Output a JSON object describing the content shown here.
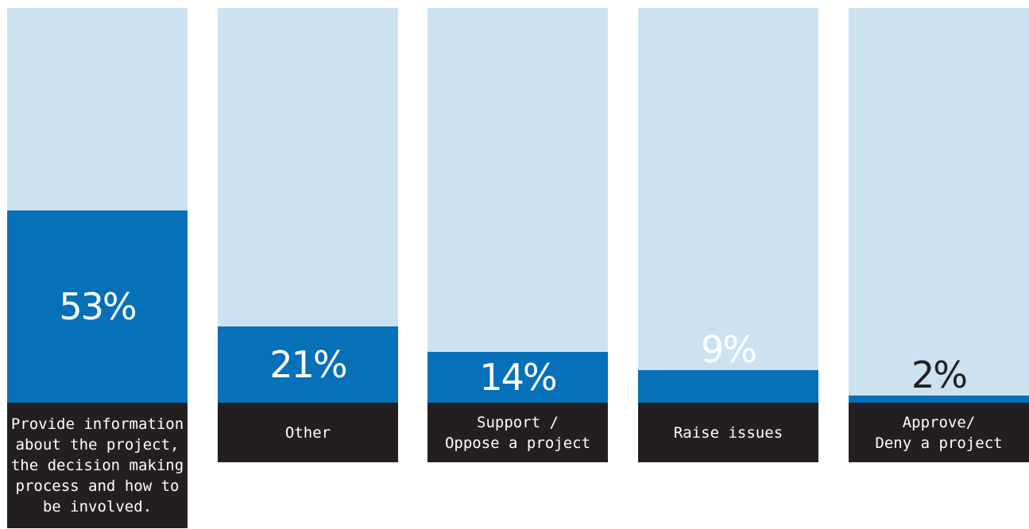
{
  "chart_data": {
    "type": "bar",
    "orientation": "vertical",
    "value_suffix": "%",
    "ylim": [
      0,
      100
    ],
    "colors": {
      "track": "#cce2f1",
      "fill": "#0670b8",
      "label_bg": "#231f20",
      "label_text": "#ffffff"
    },
    "categories": [
      "Provide information\nabout the project,\nthe decision making\nprocess and how to\nbe involved.",
      "Other",
      "Support /\nOppose a project",
      "Raise issues",
      "Approve/\nDeny a project"
    ],
    "values": [
      53,
      21,
      14,
      9,
      2
    ],
    "data_labels": [
      "53%",
      "21%",
      "14%",
      "9%",
      "2%"
    ]
  }
}
